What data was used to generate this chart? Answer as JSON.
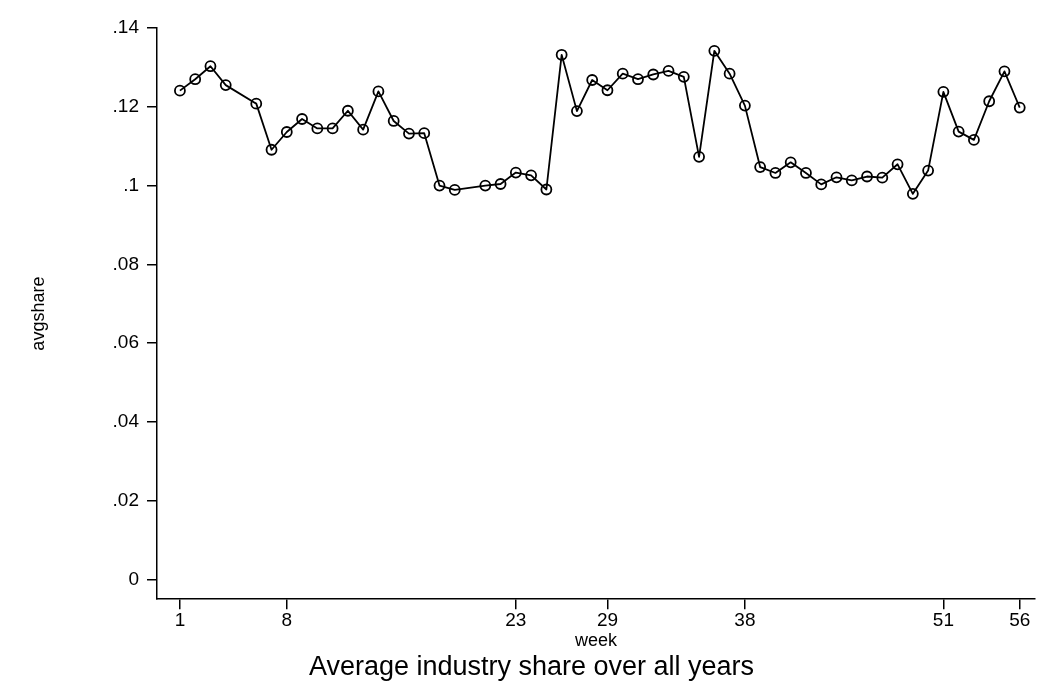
{
  "chart_data": {
    "type": "line",
    "title": "Average industry share over all years",
    "xlabel": "week",
    "ylabel": "avgshare",
    "x": [
      1,
      2,
      3,
      4,
      6,
      7,
      8,
      9,
      10,
      11,
      12,
      13,
      14,
      15,
      16,
      17,
      18,
      19,
      21,
      22,
      23,
      24,
      25,
      26,
      27,
      28,
      29,
      30,
      31,
      32,
      33,
      34,
      35,
      36,
      37,
      38,
      39,
      40,
      41,
      42,
      43,
      44,
      45,
      46,
      47,
      48,
      49,
      50,
      51,
      52,
      53,
      54,
      55,
      56
    ],
    "series": [
      {
        "color": "#000000",
        "values": [
          0.1241,
          0.127,
          0.1303,
          0.1255,
          0.1208,
          0.1091,
          0.1136,
          0.1169,
          0.1145,
          0.1145,
          0.119,
          0.1142,
          0.1239,
          0.1164,
          0.1132,
          0.1133,
          0.1,
          0.0989,
          0.1,
          0.1004,
          0.1033,
          0.1026,
          0.099,
          0.1332,
          0.1189,
          0.1268,
          0.1242,
          0.1284,
          0.127,
          0.1282,
          0.1291,
          0.1276,
          0.1073,
          0.1342,
          0.1284,
          0.1203,
          0.1047,
          0.1032,
          0.1059,
          0.1032,
          0.1003,
          0.1021,
          0.1013,
          0.1023,
          0.102,
          0.1054,
          0.0979,
          0.1038,
          0.1238,
          0.1137,
          0.1116,
          0.1214,
          0.129,
          0.1198
        ]
      }
    ],
    "xlim": [
      -0.5,
      57
    ],
    "xticks": [
      1,
      8,
      23,
      29,
      38,
      51,
      56
    ],
    "ylim": [
      -0.005,
      0.14
    ],
    "yticks": [
      0,
      {
        "value": 0.02,
        "label": ".02"
      },
      {
        "value": 0.04,
        "label": ".04"
      },
      {
        "value": 0.06,
        "label": ".06"
      },
      {
        "value": 0.08,
        "label": ".08"
      },
      {
        "value": 0.1,
        "label": ".1"
      },
      {
        "value": 0.12,
        "label": ".12"
      },
      {
        "value": 0.14,
        "label": ".14"
      }
    ],
    "grid": false,
    "legend": false,
    "marker": "circle",
    "line_style": "solid"
  }
}
